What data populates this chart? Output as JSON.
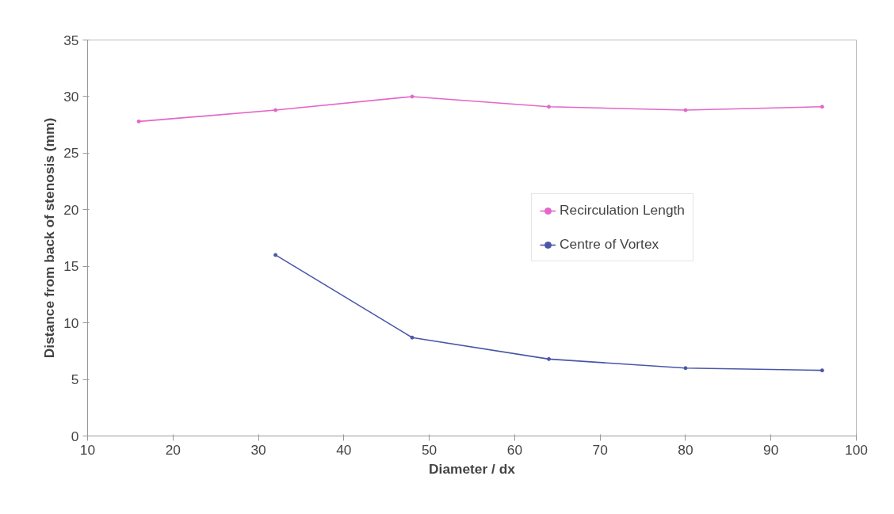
{
  "chart_data": {
    "type": "line",
    "xlabel": "Diameter / dx",
    "ylabel": "Distance from back of stenosis (mm)",
    "xlim": [
      10,
      100
    ],
    "xticks": [
      10,
      20,
      30,
      40,
      50,
      60,
      70,
      80,
      90,
      100
    ],
    "ylim": [
      0,
      35
    ],
    "yticks": [
      0,
      5,
      10,
      15,
      20,
      25,
      30,
      35
    ],
    "grid": false,
    "legend": "right",
    "marker": "circle",
    "line_style": "solid",
    "series": [
      {
        "name": "Recirculation Length",
        "color": "#e466c8",
        "x": [
          16,
          32,
          48,
          64,
          80,
          96
        ],
        "values": [
          27.8,
          28.8,
          30.0,
          29.1,
          28.8,
          29.1
        ]
      },
      {
        "name": "Centre of Vortex",
        "color": "#4a56a8",
        "x": [
          32,
          48,
          64,
          80,
          96
        ],
        "values": [
          16.0,
          8.7,
          6.8,
          6.0,
          5.8
        ]
      }
    ]
  }
}
